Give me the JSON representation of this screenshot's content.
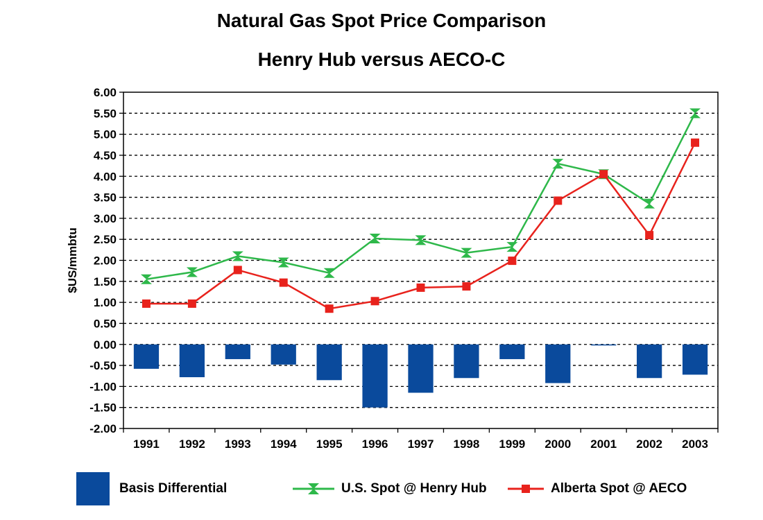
{
  "title": "Natural Gas Spot Price Comparison",
  "subtitle": "Henry Hub versus AECO-C",
  "chart_data": {
    "type": "bar",
    "title": "Natural Gas Spot Price Comparison",
    "subtitle": "Henry Hub versus AECO-C",
    "xlabel": "",
    "ylabel": "$US/mmbtu",
    "ylim": [
      -2.0,
      6.0
    ],
    "ytick_step": 0.5,
    "yticks": [
      "6.00",
      "5.50",
      "5.00",
      "4.50",
      "4.00",
      "3.50",
      "3.00",
      "2.50",
      "2.00",
      "1.50",
      "1.00",
      "0.50",
      "0.00",
      "-0.50",
      "-1.00",
      "-1.50",
      "-2.00"
    ],
    "grid": true,
    "legend_position": "bottom",
    "categories": [
      "1991",
      "1992",
      "1993",
      "1994",
      "1995",
      "1996",
      "1997",
      "1998",
      "1999",
      "2000",
      "2001",
      "2002",
      "2003"
    ],
    "series": [
      {
        "name": "Basis Differential",
        "kind": "bar",
        "color": "#0a4a9c",
        "values": [
          -0.58,
          -0.78,
          -0.35,
          -0.48,
          -0.85,
          -1.5,
          -1.15,
          -0.8,
          -0.35,
          -0.92,
          -0.02,
          -0.8,
          -0.72
        ]
      },
      {
        "name": "U.S. Spot @ Henry Hub",
        "kind": "line",
        "marker": "hourglass",
        "color": "#2eb84a",
        "values": [
          1.55,
          1.72,
          2.1,
          1.95,
          1.7,
          2.52,
          2.48,
          2.18,
          2.32,
          4.3,
          4.05,
          3.35,
          5.5
        ]
      },
      {
        "name": "Alberta Spot @ AECO",
        "kind": "line",
        "marker": "square",
        "color": "#e8221c",
        "values": [
          0.97,
          0.97,
          1.77,
          1.47,
          0.85,
          1.03,
          1.35,
          1.38,
          1.99,
          3.42,
          4.05,
          2.6,
          4.8
        ]
      }
    ]
  }
}
